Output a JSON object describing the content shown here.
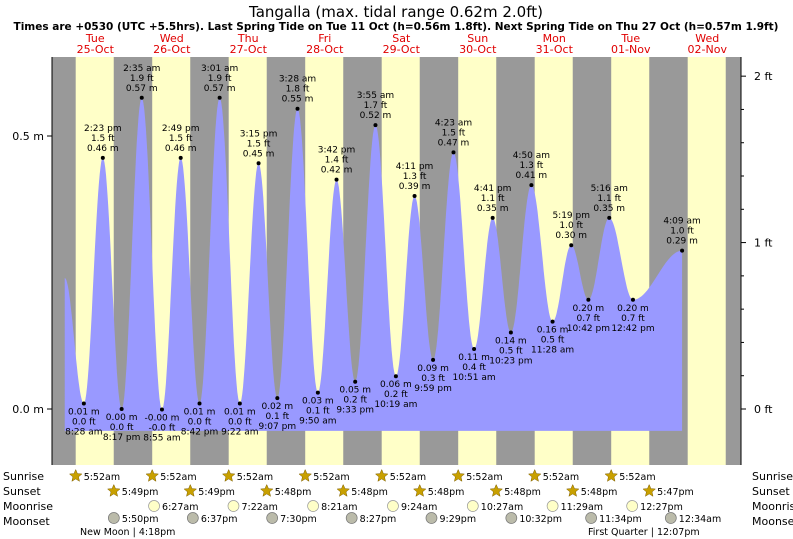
{
  "chart_data": {
    "type": "area",
    "title": "Tangalla (max. tidal range 0.62m 2.0ft)",
    "subtitle": "Times are +0530 (UTC +5.5hrs). Last Spring Tide on Tue 11 Oct (h=0.56m 1.8ft). Next Spring Tide on Thu 27 Oct (h=0.57m 1.9ft)",
    "ylim": [
      -0.09,
      0.64
    ],
    "x_range_days": [
      0,
      9.35
    ],
    "left_axis": {
      "unit": "m",
      "ticks": [
        {
          "v": 0.0,
          "label": "0.0 m"
        },
        {
          "v": 0.5,
          "label": "0.5 m"
        }
      ]
    },
    "right_axis": {
      "unit": "ft",
      "ticks": [
        {
          "v": 0.0,
          "label": "0 ft"
        },
        {
          "v": 0.3048,
          "label": "1 ft"
        },
        {
          "v": 0.6096,
          "label": "2 ft"
        }
      ]
    },
    "days": [
      {
        "dow": "Tue",
        "date": "25-Oct",
        "sunrise": "5:52am",
        "sunset": "5:49pm",
        "moonrise": "",
        "moonset": "5:50pm"
      },
      {
        "dow": "Wed",
        "date": "26-Oct",
        "sunrise": "5:52am",
        "sunset": "5:49pm",
        "moonrise": "6:27am",
        "moonset": "6:37pm"
      },
      {
        "dow": "Thu",
        "date": "27-Oct",
        "sunrise": "5:52am",
        "sunset": "5:48pm",
        "moonrise": "7:22am",
        "moonset": "7:30pm"
      },
      {
        "dow": "Fri",
        "date": "28-Oct",
        "sunrise": "5:52am",
        "sunset": "5:48pm",
        "moonrise": "8:21am",
        "moonset": "8:27pm"
      },
      {
        "dow": "Sat",
        "date": "29-Oct",
        "sunrise": "5:52am",
        "sunset": "5:48pm",
        "moonrise": "9:24am",
        "moonset": "9:29pm"
      },
      {
        "dow": "Sun",
        "date": "30-Oct",
        "sunrise": "5:52am",
        "sunset": "5:48pm",
        "moonrise": "10:27am",
        "moonset": "10:32pm"
      },
      {
        "dow": "Mon",
        "date": "31-Oct",
        "sunrise": "5:52am",
        "sunset": "5:48pm",
        "moonrise": "11:29am",
        "moonset": "11:34pm"
      },
      {
        "dow": "Tue",
        "date": "01-Nov",
        "sunrise": "5:52am",
        "sunset": "5:47pm",
        "moonrise": "12:27pm",
        "moonset": "12:34am"
      },
      {
        "dow": "Wed",
        "date": "02-Nov",
        "sunrise": "",
        "sunset": "",
        "moonrise": "",
        "moonset": ""
      }
    ],
    "tides": [
      {
        "t": 0.351,
        "type": "low",
        "time": "8:28 am",
        "ft": "0.0 ft",
        "m": "0.01 m",
        "h": 0.01
      },
      {
        "t": 0.599,
        "type": "high",
        "time": "2:23 pm",
        "ft": "1.5 ft",
        "m": "0.46 m",
        "h": 0.46
      },
      {
        "t": 0.845,
        "type": "low",
        "time": "8:17 pm",
        "ft": "0.0 ft",
        "m": "0.00 m",
        "h": 0.0
      },
      {
        "t": 1.108,
        "type": "high",
        "time": "2:35 am",
        "ft": "1.9 ft",
        "m": "0.57 m",
        "h": 0.57
      },
      {
        "t": 1.372,
        "type": "low",
        "time": "8:55 am",
        "ft": "-0.0 ft",
        "m": "-0.00 m",
        "h": -0.001
      },
      {
        "t": 1.617,
        "type": "high",
        "time": "2:49 pm",
        "ft": "1.5 ft",
        "m": "0.46 m",
        "h": 0.46
      },
      {
        "t": 1.863,
        "type": "low",
        "time": "8:42 pm",
        "ft": "0.0 ft",
        "m": "0.01 m",
        "h": 0.01
      },
      {
        "t": 2.126,
        "type": "high",
        "time": "3:01 am",
        "ft": "1.9 ft",
        "m": "0.57 m",
        "h": 0.57
      },
      {
        "t": 2.39,
        "type": "low",
        "time": "9:22 am",
        "ft": "0.0 ft",
        "m": "0.01 m",
        "h": 0.01
      },
      {
        "t": 2.635,
        "type": "high",
        "time": "3:15 pm",
        "ft": "1.5 ft",
        "m": "0.45 m",
        "h": 0.45
      },
      {
        "t": 2.88,
        "type": "low",
        "time": "9:07 pm",
        "ft": "0.1 ft",
        "m": "0.02 m",
        "h": 0.02
      },
      {
        "t": 3.144,
        "type": "high",
        "time": "3:28 am",
        "ft": "1.8 ft",
        "m": "0.55 m",
        "h": 0.55
      },
      {
        "t": 3.41,
        "type": "low",
        "time": "9:50 am",
        "ft": "0.1 ft",
        "m": "0.03 m",
        "h": 0.03
      },
      {
        "t": 3.654,
        "type": "high",
        "time": "3:42 pm",
        "ft": "1.4 ft",
        "m": "0.42 m",
        "h": 0.42
      },
      {
        "t": 3.898,
        "type": "low",
        "time": "9:33 pm",
        "ft": "0.2 ft",
        "m": "0.05 m",
        "h": 0.05
      },
      {
        "t": 4.163,
        "type": "high",
        "time": "3:55 am",
        "ft": "1.7 ft",
        "m": "0.52 m",
        "h": 0.52
      },
      {
        "t": 4.43,
        "type": "low",
        "time": "10:19 am",
        "ft": "0.2 ft",
        "m": "0.06 m",
        "h": 0.06
      },
      {
        "t": 4.674,
        "type": "high",
        "time": "4:11 pm",
        "ft": "1.3 ft",
        "m": "0.39 m",
        "h": 0.39
      },
      {
        "t": 4.916,
        "type": "low",
        "time": "9:59 pm",
        "ft": "0.3 ft",
        "m": "0.09 m",
        "h": 0.09
      },
      {
        "t": 5.183,
        "type": "high",
        "time": "4:23 am",
        "ft": "1.5 ft",
        "m": "0.47 m",
        "h": 0.47
      },
      {
        "t": 5.452,
        "type": "low",
        "time": "10:51 am",
        "ft": "0.4 ft",
        "m": "0.11 m",
        "h": 0.11
      },
      {
        "t": 5.695,
        "type": "high",
        "time": "4:41 pm",
        "ft": "1.1 ft",
        "m": "0.35 m",
        "h": 0.35
      },
      {
        "t": 5.933,
        "type": "low",
        "time": "10:23 pm",
        "ft": "0.5 ft",
        "m": "0.14 m",
        "h": 0.14
      },
      {
        "t": 6.201,
        "type": "high",
        "time": "4:50 am",
        "ft": "1.3 ft",
        "m": "0.41 m",
        "h": 0.41
      },
      {
        "t": 6.478,
        "type": "low",
        "time": "11:28 am",
        "ft": "0.5 ft",
        "m": "0.16 m",
        "h": 0.16
      },
      {
        "t": 6.722,
        "type": "high",
        "time": "5:19 pm",
        "ft": "1.0 ft",
        "m": "0.30 m",
        "h": 0.3
      },
      {
        "t": 6.946,
        "type": "low",
        "time": "10:42 pm",
        "ft": "0.7 ft",
        "m": "0.20 m",
        "h": 0.2
      },
      {
        "t": 7.219,
        "type": "high",
        "time": "5:16 am",
        "ft": "1.1 ft",
        "m": "0.35 m",
        "h": 0.35
      },
      {
        "t": 7.529,
        "type": "low",
        "time": "12:42 pm",
        "ft": "0.7 ft",
        "m": "0.20 m",
        "h": 0.2
      },
      {
        "t": 8.171,
        "type": "high",
        "time": "4:09 am",
        "ft": "1.0 ft",
        "m": "0.29 m",
        "h": 0.29
      }
    ],
    "moon_phases": [
      {
        "label": "New Moon",
        "time": "4:18pm"
      },
      {
        "label": "First Quarter",
        "time": "12:07pm"
      }
    ],
    "row_labels": {
      "sunrise": "Sunrise",
      "sunset": "Sunset",
      "moonrise": "Moonrise",
      "moonset": "Moonset"
    }
  },
  "colors": {
    "night": "#999999",
    "day": "#ffffc8",
    "tide_fill": "#9999ff",
    "date_text": "#e00000",
    "sun": "#c8a000",
    "moonrise": "#ffffc8",
    "moonset": "#bbbbaa"
  }
}
